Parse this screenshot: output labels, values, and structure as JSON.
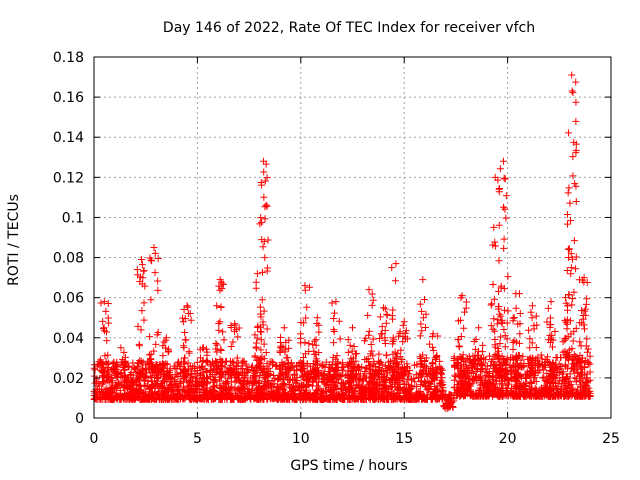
{
  "chart_data": {
    "type": "scatter",
    "title": "Day 146 of 2022, Rate Of TEC Index for receiver vfch",
    "xlabel": "GPS time / hours",
    "ylabel": "ROTI / TECUs",
    "xlim": [
      0,
      25
    ],
    "ylim": [
      0,
      0.18
    ],
    "xticks": [
      0,
      5,
      10,
      15,
      20,
      25
    ],
    "xtick_labels": [
      "0",
      "5",
      "10",
      "15",
      "20",
      "25"
    ],
    "yticks": [
      0,
      0.02,
      0.04,
      0.06,
      0.08,
      0.1,
      0.12,
      0.14,
      0.16,
      0.18
    ],
    "ytick_labels": [
      "0",
      "0.02",
      "0.04",
      "0.06",
      "0.08",
      "0.1",
      "0.12",
      "0.14",
      "0.16",
      "0.18"
    ],
    "grid": true,
    "marker": "plus",
    "color": "#ff0000",
    "series": [
      {
        "name": "ROTI",
        "background": {
          "segments": [
            {
              "x_start": 0.0,
              "x_end": 16.9,
              "base": 0.014,
              "spread": 0.012
            },
            {
              "x_start": 17.4,
              "x_end": 24.0,
              "base": 0.016,
              "spread": 0.013
            }
          ],
          "dip": {
            "x_start": 16.9,
            "x_end": 17.4,
            "base": 0.008,
            "spread": 0.004
          }
        },
        "peaks": [
          {
            "x": 0.5,
            "y": 0.058
          },
          {
            "x": 1.3,
            "y": 0.035
          },
          {
            "x": 2.3,
            "y": 0.079
          },
          {
            "x": 2.9,
            "y": 0.085
          },
          {
            "x": 3.5,
            "y": 0.04
          },
          {
            "x": 4.5,
            "y": 0.056
          },
          {
            "x": 5.3,
            "y": 0.035
          },
          {
            "x": 6.1,
            "y": 0.069
          },
          {
            "x": 6.8,
            "y": 0.047
          },
          {
            "x": 7.9,
            "y": 0.072
          },
          {
            "x": 8.2,
            "y": 0.128
          },
          {
            "x": 9.2,
            "y": 0.045
          },
          {
            "x": 10.2,
            "y": 0.066
          },
          {
            "x": 10.8,
            "y": 0.05
          },
          {
            "x": 11.7,
            "y": 0.058
          },
          {
            "x": 12.5,
            "y": 0.045
          },
          {
            "x": 13.3,
            "y": 0.064
          },
          {
            "x": 14.0,
            "y": 0.055
          },
          {
            "x": 14.6,
            "y": 0.077
          },
          {
            "x": 15.0,
            "y": 0.048
          },
          {
            "x": 15.9,
            "y": 0.069
          },
          {
            "x": 16.4,
            "y": 0.042
          },
          {
            "x": 17.8,
            "y": 0.061
          },
          {
            "x": 18.6,
            "y": 0.045
          },
          {
            "x": 19.4,
            "y": 0.12
          },
          {
            "x": 19.8,
            "y": 0.128
          },
          {
            "x": 20.4,
            "y": 0.062
          },
          {
            "x": 21.2,
            "y": 0.056
          },
          {
            "x": 22.1,
            "y": 0.058
          },
          {
            "x": 22.8,
            "y": 0.06
          },
          {
            "x": 23.1,
            "y": 0.171
          },
          {
            "x": 23.7,
            "y": 0.07
          }
        ]
      }
    ]
  }
}
